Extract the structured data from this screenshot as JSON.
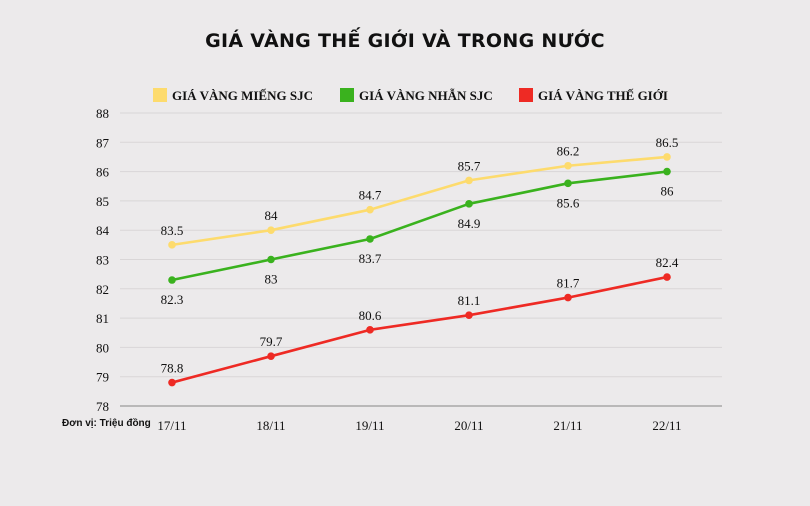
{
  "chart_data": {
    "type": "line",
    "title": "GIÁ VÀNG THẾ GIỚI VÀ TRONG NƯỚC",
    "unit_note": "Đơn vị: Triệu đồng",
    "categories": [
      "17/11",
      "18/11",
      "19/11",
      "20/11",
      "21/11",
      "22/11"
    ],
    "ylim": [
      78,
      88
    ],
    "yticks": [
      78,
      79,
      80,
      81,
      82,
      83,
      84,
      85,
      86,
      87,
      88
    ],
    "grid": true,
    "legend_position": "top",
    "series": [
      {
        "name": "GIÁ VÀNG MIẾNG SJC",
        "color": "#fddb6d",
        "values": [
          83.5,
          84,
          84.7,
          85.7,
          86.2,
          86.5
        ],
        "label_side": [
          "above",
          "above",
          "above",
          "above",
          "above",
          "above"
        ]
      },
      {
        "name": "GIÁ VÀNG NHẪN SJC",
        "color": "#3ab21e",
        "values": [
          82.3,
          83,
          83.7,
          84.9,
          85.6,
          86
        ],
        "label_side": [
          "below",
          "below",
          "below",
          "below",
          "below",
          "below"
        ]
      },
      {
        "name": "GIÁ VÀNG THẾ GIỚI",
        "color": "#ee2a24",
        "values": [
          78.8,
          79.7,
          80.6,
          81.1,
          81.7,
          82.4
        ],
        "label_side": [
          "above",
          "above",
          "above",
          "above",
          "above",
          "above"
        ]
      }
    ]
  }
}
